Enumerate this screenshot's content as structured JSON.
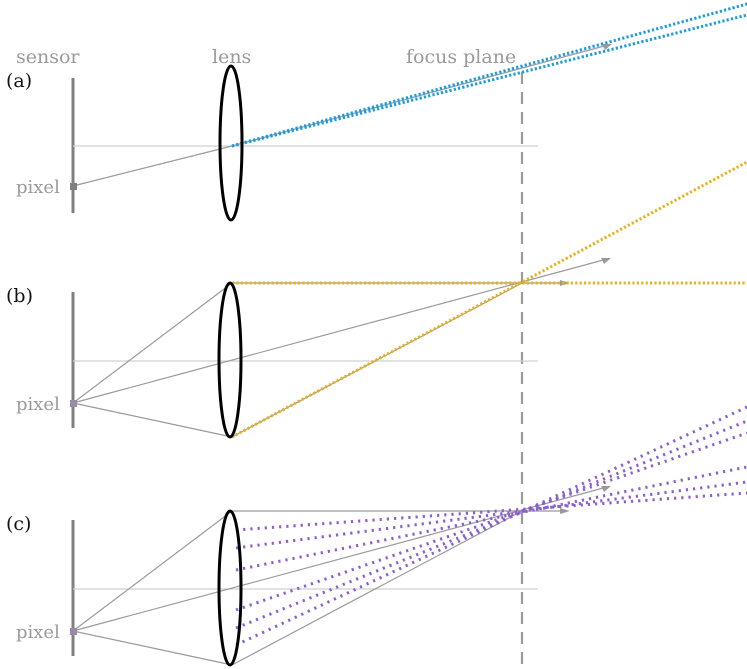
{
  "headers": {
    "sensor": "sensor",
    "lens": "lens",
    "focus_plane": "focus plane"
  },
  "panels": [
    {
      "label": "(a)",
      "pixel_label": "pixel",
      "ray_color": "#1a9ce0",
      "description": "single ray through lens center"
    },
    {
      "label": "(b)",
      "pixel_label": "pixel",
      "ray_color": "#e8b21a",
      "description": "rays through lens edges converge at focus plane"
    },
    {
      "label": "(c)",
      "pixel_label": "pixel",
      "ray_color": "#8a5fd0",
      "description": "many rays through lens aperture converge at focus plane"
    }
  ],
  "colors": {
    "sensor": "#808080",
    "guide_ray": "#9a9a9a",
    "axis": "#d0d0d0",
    "focus_plane": "#9a9a9a",
    "pixel": "#808080",
    "pixel_c": "#9a8aa8",
    "lens": "#000000"
  }
}
